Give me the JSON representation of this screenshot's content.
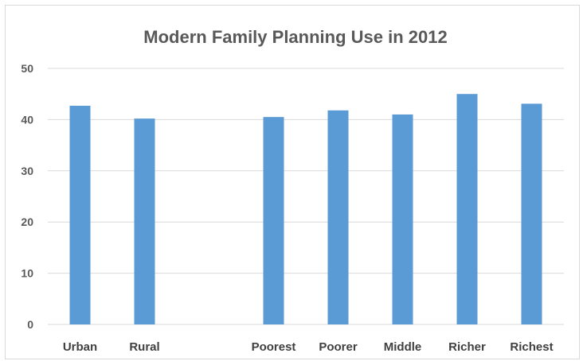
{
  "chart_data": {
    "type": "bar",
    "title": "Modern Family Planning Use in 2012",
    "categories": [
      "Urban",
      "Rural",
      "",
      "Poorest",
      "Poorer",
      "Middle",
      "Richer",
      "Richest"
    ],
    "values": [
      42.7,
      40.2,
      null,
      40.5,
      41.8,
      41.0,
      45.0,
      43.1
    ],
    "xlabel": "",
    "ylabel": "",
    "ylim": [
      0,
      50
    ],
    "yticks": [
      0,
      10,
      20,
      30,
      40,
      50
    ],
    "grid": true,
    "legend": "none",
    "bar_color": "#5b9bd5",
    "grid_color": "#d9d9d9"
  }
}
